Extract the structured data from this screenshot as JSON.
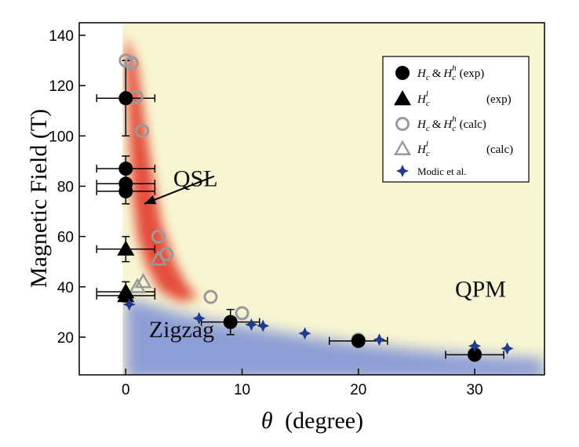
{
  "chart_data": {
    "type": "scatter",
    "title": "",
    "xlabel_symbol": "θ",
    "xlabel_unit": "(degree)",
    "ylabel": "Magnetic Field (T)",
    "xlim": [
      -4,
      36
    ],
    "ylim": [
      5,
      145
    ],
    "xticks": [
      0,
      10,
      20,
      30
    ],
    "yticks": [
      20,
      40,
      60,
      80,
      100,
      120,
      140
    ],
    "grid": false,
    "legend_position": "top-right",
    "colors": {
      "background": "#f8f6d2",
      "qsl": "#e23a2c",
      "zigzag": "#8d9ed6",
      "exp": "#000000",
      "calc": "#9a9a9a",
      "modic": "#1f3a8f"
    },
    "regions": [
      {
        "label": "QSL",
        "x": 6.0,
        "y": 80
      },
      {
        "label": "QPM",
        "x": 30.5,
        "y": 36
      },
      {
        "label": "Zigzag",
        "x": 4.8,
        "y": 20
      }
    ],
    "annotation_arrow": {
      "from": [
        7.6,
        84
      ],
      "to": [
        1.6,
        73
      ]
    },
    "series": [
      {
        "name": "H_c & H_c^h (exp)",
        "legend_main": "H",
        "legend_sub": "c",
        "legend_amp": "&",
        "legend_sub2": "c",
        "legend_sup2": "h",
        "legend_tag": "(exp)",
        "marker": "circle-filled",
        "points": [
          {
            "x": 0,
            "y": 115,
            "xerr": 2.5,
            "yerr": 15
          },
          {
            "x": 0,
            "y": 87,
            "xerr": 2.5,
            "yerr": 5
          },
          {
            "x": 0,
            "y": 81,
            "xerr": 2.5,
            "yerr": 4
          },
          {
            "x": 0,
            "y": 78,
            "xerr": 2.5,
            "yerr": 5
          },
          {
            "x": 9,
            "y": 26,
            "xerr": 2.5,
            "yerr": 5
          },
          {
            "x": 20,
            "y": 18.5,
            "xerr": 2.5,
            "yerr": 0
          },
          {
            "x": 30,
            "y": 13,
            "xerr": 2.5,
            "yerr": 0
          }
        ]
      },
      {
        "name": "H_c^l (exp)",
        "legend_main": "H",
        "legend_sub": "c",
        "legend_sup": "l",
        "legend_tag": "(exp)",
        "marker": "triangle-filled",
        "points": [
          {
            "x": 0,
            "y": 55,
            "xerr": 2.5,
            "yerr": 5
          },
          {
            "x": 0,
            "y": 38,
            "xerr": 2.5,
            "yerr": 4
          },
          {
            "x": 0,
            "y": 36.5,
            "xerr": 2.5,
            "yerr": 0
          }
        ]
      },
      {
        "name": "H_c & H_c^h (calc)",
        "legend_main": "H",
        "legend_sub": "c",
        "legend_amp": "&",
        "legend_sub2": "c",
        "legend_sup2": "h",
        "legend_tag": "(calc)",
        "marker": "circle-open",
        "points": [
          {
            "x": 0,
            "y": 130
          },
          {
            "x": 0.5,
            "y": 129
          },
          {
            "x": 0.9,
            "y": 115.5
          },
          {
            "x": 1.4,
            "y": 102
          },
          {
            "x": 2.8,
            "y": 60
          },
          {
            "x": 3.5,
            "y": 53
          },
          {
            "x": 7.3,
            "y": 36
          },
          {
            "x": 10,
            "y": 29.5
          },
          {
            "x": 20,
            "y": 19
          },
          {
            "x": 30,
            "y": 13.5
          }
        ]
      },
      {
        "name": "H_c^l (calc)",
        "legend_main": "H",
        "legend_sub": "c",
        "legend_sup": "l",
        "legend_tag": "(calc)",
        "marker": "triangle-open",
        "points": [
          {
            "x": 1.5,
            "y": 42
          },
          {
            "x": 1.0,
            "y": 40
          },
          {
            "x": 2.8,
            "y": 51
          }
        ]
      },
      {
        "name": "Modic et al.",
        "legend_text": "Modic et al.",
        "marker": "star4",
        "points": [
          {
            "x": 0.3,
            "y": 33
          },
          {
            "x": 6.3,
            "y": 27.5
          },
          {
            "x": 10.8,
            "y": 25
          },
          {
            "x": 11.8,
            "y": 24.5
          },
          {
            "x": 15.4,
            "y": 21.5
          },
          {
            "x": 21.8,
            "y": 19
          },
          {
            "x": 30,
            "y": 16.5
          },
          {
            "x": 32.8,
            "y": 15.5
          }
        ]
      }
    ]
  }
}
